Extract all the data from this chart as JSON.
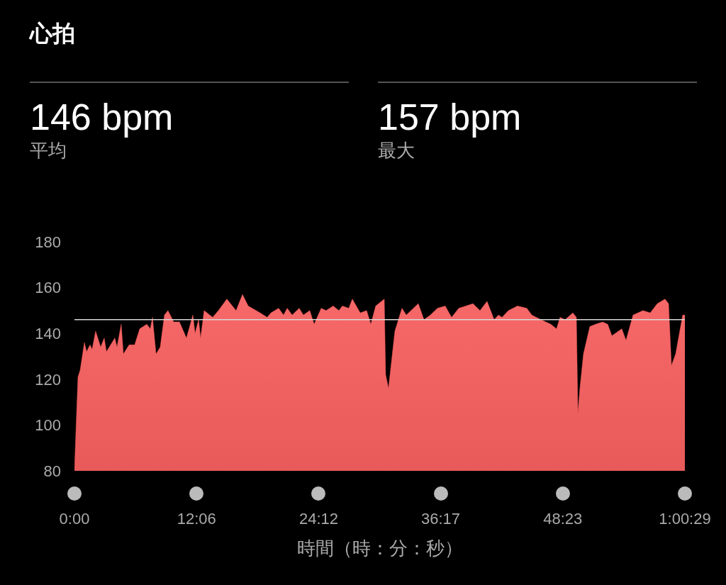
{
  "chart_data": {
    "type": "area",
    "title": "心拍",
    "annotations": [
      "146 bpm",
      "平均",
      "157 bpm",
      "最大"
    ],
    "xlabel": "時間（時：分：秒）",
    "x": [
      0,
      21,
      34,
      59,
      72,
      93,
      105,
      126,
      156,
      177,
      190,
      240,
      253,
      278,
      291,
      325,
      358,
      388,
      430,
      451,
      464,
      485,
      510,
      535,
      556,
      590,
      624,
      666,
      704,
      717,
      738,
      750,
      771,
      822,
      856,
      906,
      961,
      999,
      1033,
      1104,
      1146,
      1168,
      1214,
      1243,
      1265,
      1294,
      1336,
      1361,
      1399,
      1425,
      1467,
      1496,
      1538,
      1572,
      1593,
      1631,
      1652,
      1699,
      1737,
      1762,
      1791,
      1842,
      1850,
      1867,
      1905,
      1947,
      1973,
      2015,
      2044,
      2078,
      2116,
      2158,
      2204,
      2242,
      2285,
      2327,
      2369,
      2411,
      2453,
      2495,
      2521,
      2542,
      2580,
      2634,
      2689,
      2719,
      2773,
      2832,
      2866,
      2887,
      2917,
      2963,
      2984,
      2993,
      3005,
      3026,
      3064,
      3098,
      3140,
      3170,
      3195,
      3254,
      3279,
      3321,
      3380,
      3423,
      3465,
      3511,
      3532,
      3549,
      3574,
      3616,
      3629
    ],
    "series": [
      {
        "color": "#f65555",
        "values": [
          80,
          121,
          124,
          136,
          132,
          135,
          133,
          141,
          134,
          138,
          132,
          138,
          134,
          144,
          131,
          135,
          135,
          142,
          144,
          142,
          147,
          131,
          134,
          148,
          150,
          145,
          145,
          138,
          148,
          140,
          146,
          138,
          150,
          147,
          150,
          155,
          150,
          157,
          152,
          149,
          147,
          149,
          151,
          148,
          151,
          148,
          151,
          148,
          150,
          144,
          151,
          150,
          152,
          150,
          152,
          151,
          155,
          149,
          150,
          144,
          152,
          155,
          122,
          116,
          141,
          151,
          148,
          151,
          153,
          146,
          148,
          151,
          152,
          147,
          151,
          152,
          153,
          150,
          154,
          146,
          148,
          147,
          150,
          152,
          151,
          148,
          146,
          144,
          142,
          147,
          146,
          149,
          147,
          105,
          116,
          131,
          143,
          144,
          145,
          144,
          139,
          142,
          137,
          148,
          150,
          149,
          153,
          155,
          153,
          126,
          131,
          148,
          148
        ]
      }
    ],
    "xlim": [
      0,
      3629
    ],
    "xticks": [
      {
        "value": 0,
        "label": "0:00"
      },
      {
        "value": 726,
        "label": "12:06"
      },
      {
        "value": 1452,
        "label": "24:12"
      },
      {
        "value": 2177,
        "label": "36:17"
      },
      {
        "value": 2903,
        "label": "48:23"
      },
      {
        "value": 3629,
        "label": "1:00:29"
      }
    ],
    "ylim": [
      80,
      180
    ],
    "yticks": [
      80,
      100,
      120,
      140,
      160,
      180
    ],
    "ref_lines": [
      {
        "axis": "y",
        "value": 146,
        "color": "#d8d8d8"
      }
    ],
    "grid": false
  }
}
